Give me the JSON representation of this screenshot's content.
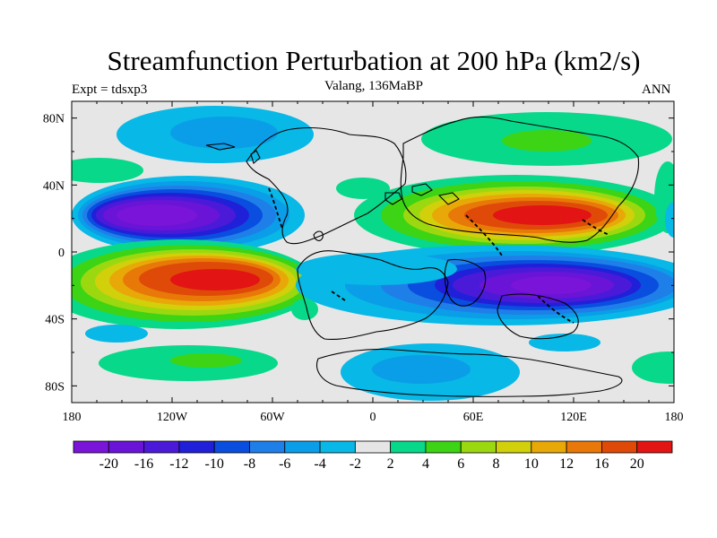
{
  "title": "Streamfunction Perturbation at 200 hPa (km2/s)",
  "left_label": "Expt = tdsxp3",
  "center_label": "Valang, 136MaBP",
  "right_label": "ANN",
  "map": {
    "lon_range": [
      -180,
      180
    ],
    "lat_range": [
      -90,
      90
    ],
    "background_color": "#e6e6e6",
    "x_ticks": [
      {
        "value": -180,
        "label": "180"
      },
      {
        "value": -120,
        "label": "120W"
      },
      {
        "value": -60,
        "label": "60W"
      },
      {
        "value": 0,
        "label": "0"
      },
      {
        "value": 60,
        "label": "60E"
      },
      {
        "value": 120,
        "label": "120E"
      },
      {
        "value": 180,
        "label": "180"
      }
    ],
    "y_ticks": [
      {
        "value": 80,
        "label": "80N"
      },
      {
        "value": 40,
        "label": "40N"
      },
      {
        "value": 0,
        "label": "0"
      },
      {
        "value": -40,
        "label": "40S"
      },
      {
        "value": -80,
        "label": "80S"
      }
    ]
  },
  "colorbar": {
    "colors": [
      "#7a14d8",
      "#6a14d8",
      "#4b1ad8",
      "#2020d8",
      "#0a4ee0",
      "#1f7fe8",
      "#0a9ee8",
      "#08b8e6",
      "#e6e6e6",
      "#08d88a",
      "#3cd414",
      "#9cd810",
      "#d2d00a",
      "#e8a808",
      "#e87808",
      "#e04a08",
      "#e21414"
    ],
    "labels": [
      "-20",
      "-16",
      "-12",
      "-10",
      "-8",
      "-6",
      "-4",
      "-2",
      "2",
      "4",
      "6",
      "8",
      "10",
      "12",
      "16",
      "20"
    ]
  }
}
